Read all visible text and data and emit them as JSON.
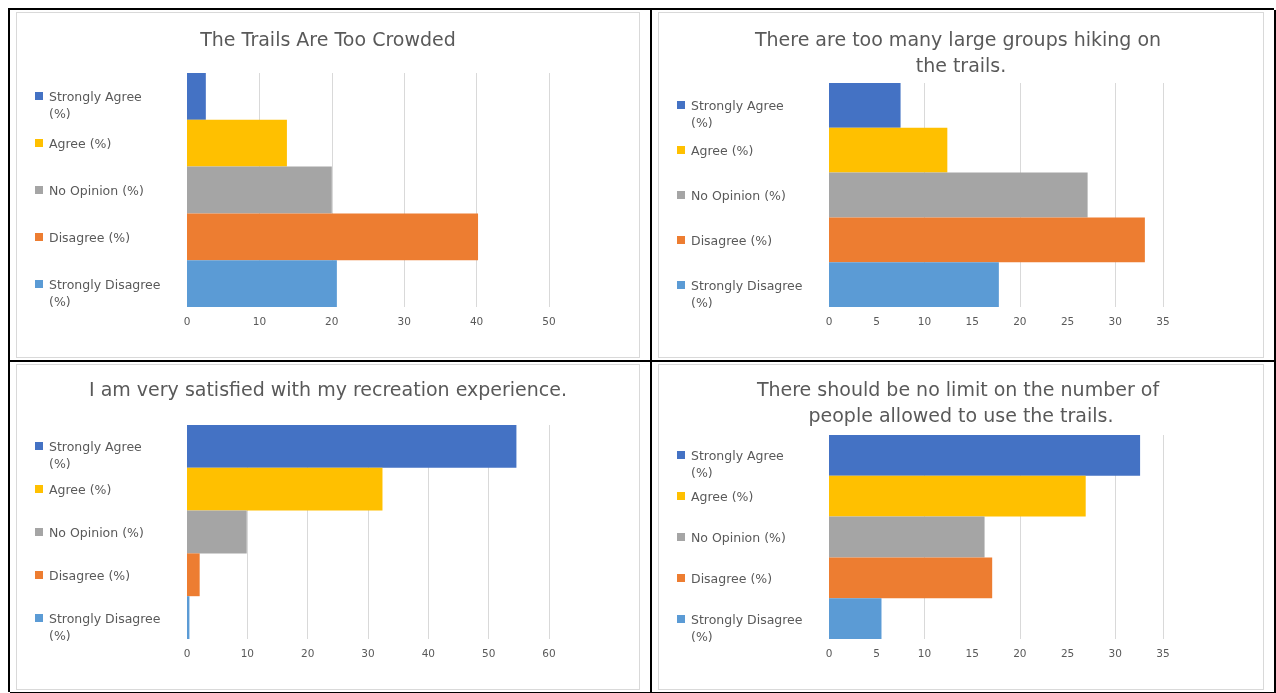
{
  "chart_data": [
    {
      "type": "bar",
      "orientation": "horizontal",
      "title": "The Trails Are Too Crowded",
      "categories": [
        "Strongly Agree (%)",
        "Agree (%)",
        "No Opinion (%)",
        "Disagree (%)",
        "Strongly Disagree (%)"
      ],
      "values": [
        2.6,
        13.8,
        20,
        40.2,
        20.7
      ],
      "colors": [
        "#4472c4",
        "#ffc000",
        "#a5a5a5",
        "#ed7d31",
        "#5b9bd5"
      ],
      "xlim": [
        0,
        50
      ],
      "xticks": [
        0,
        10,
        20,
        30,
        40,
        50
      ],
      "grid": "x"
    },
    {
      "type": "bar",
      "orientation": "horizontal",
      "title": "There are too many large groups hiking on the trails.",
      "categories": [
        "Strongly Agree (%)",
        "Agree (%)",
        "No Opinion (%)",
        "Disagree (%)",
        "Strongly Disagree (%)"
      ],
      "values": [
        7.5,
        12.4,
        27.1,
        33.1,
        17.8
      ],
      "colors": [
        "#4472c4",
        "#ffc000",
        "#a5a5a5",
        "#ed7d31",
        "#5b9bd5"
      ],
      "xlim": [
        0,
        35
      ],
      "xticks": [
        0,
        5,
        10,
        15,
        20,
        25,
        30,
        35
      ],
      "grid": "x"
    },
    {
      "type": "bar",
      "orientation": "horizontal",
      "title": "I am very satisfied with my recreation experience.",
      "categories": [
        "Strongly Agree (%)",
        "Agree (%)",
        "No Opinion (%)",
        "Disagree (%)",
        "Strongly Disagree (%)"
      ],
      "values": [
        54.6,
        32.4,
        9.9,
        2.1,
        0.4
      ],
      "colors": [
        "#4472c4",
        "#ffc000",
        "#a5a5a5",
        "#ed7d31",
        "#5b9bd5"
      ],
      "xlim": [
        0,
        60
      ],
      "xticks": [
        0,
        10,
        20,
        30,
        40,
        50,
        60
      ],
      "grid": "x"
    },
    {
      "type": "bar",
      "orientation": "horizontal",
      "title": "There should be no limit on the number of people allowed to use the trails.",
      "categories": [
        "Strongly Agree (%)",
        "Agree (%)",
        "No Opinion (%)",
        "Disagree (%)",
        "Strongly Disagree (%)"
      ],
      "values": [
        32.6,
        26.9,
        16.3,
        17.1,
        5.5
      ],
      "colors": [
        "#4472c4",
        "#ffc000",
        "#a5a5a5",
        "#ed7d31",
        "#5b9bd5"
      ],
      "xlim": [
        0,
        35
      ],
      "xticks": [
        0,
        5,
        10,
        15,
        20,
        25,
        30,
        35
      ],
      "grid": "x"
    }
  ]
}
